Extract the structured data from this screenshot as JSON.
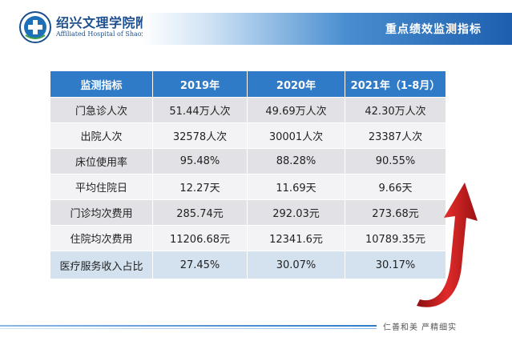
{
  "header": {
    "hospital_name": "绍兴文理学院附属医院",
    "hospital_name_en": "Affiliated Hospital of Shaoxing University",
    "title": "重点绩效监测指标"
  },
  "table": {
    "headers": [
      "监测指标",
      "2019年",
      "2020年",
      "2021年（1-8月）"
    ],
    "rows": [
      [
        "门急诊人次",
        "51.44万人次",
        "49.69万人次",
        "42.30万人次"
      ],
      [
        "出院人次",
        "32578人次",
        "30001人次",
        "23387人次"
      ],
      [
        "床位使用率",
        "95.48%",
        "88.28%",
        "90.55%"
      ],
      [
        "平均住院日",
        "12.27天",
        "11.69天",
        "9.66天"
      ],
      [
        "门诊均次费用",
        "285.74元",
        "292.03元",
        "273.68元"
      ],
      [
        "住院均次费用",
        "11206.68元",
        "12341.6元",
        "10789.35元"
      ],
      [
        "医疗服务收入占比",
        "27.45%",
        "30.07%",
        "30.17%"
      ]
    ]
  },
  "footer": {
    "motto": "仁善和美  严精细实"
  },
  "colors": {
    "header_blue": "#2f7bc7",
    "arrow_red": "#d42020",
    "brand_navy": "#1d4f8f"
  },
  "icons": {
    "logo": "hospital-emblem-icon",
    "arrow": "red-up-arrow-icon"
  }
}
